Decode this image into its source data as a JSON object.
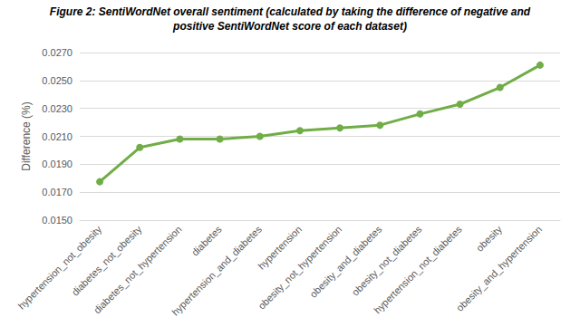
{
  "chart_data": {
    "type": "line",
    "title": "Figure 2: SentiWordNet overall sentiment (calculated by taking the difference of negative and\npositive SentiWordNet score of each dataset)",
    "y_label": "Difference (%)",
    "categories": [
      "hypertension_not_obesity",
      "diabetes_not_obesity",
      "diabetes_not_hypertension",
      "diabetes",
      "hypertension_and_diabetes",
      "hypertension",
      "obesity_not_hypertension",
      "obesity_and_diabetes",
      "obesity_not_diabetes",
      "hypertension_not_diabetes",
      "obesity",
      "obesity_and_hypertension"
    ],
    "values": [
      0.01775,
      0.0202,
      0.0208,
      0.0208,
      0.021,
      0.0214,
      0.0216,
      0.0218,
      0.0226,
      0.0233,
      0.0245,
      0.0261
    ],
    "color": "#70ad47",
    "marker": "circle",
    "ylim": [
      0.015,
      0.027
    ],
    "yticks": [
      {
        "value": 0.015,
        "label": "0.0150"
      },
      {
        "value": 0.017,
        "label": "0.0170"
      },
      {
        "value": 0.019,
        "label": "0.0190"
      },
      {
        "value": 0.021,
        "label": "0.0210"
      },
      {
        "value": 0.023,
        "label": "0.0230"
      },
      {
        "value": 0.025,
        "label": "0.0250"
      },
      {
        "value": 0.027,
        "label": "0.0270"
      }
    ],
    "grid": true
  }
}
